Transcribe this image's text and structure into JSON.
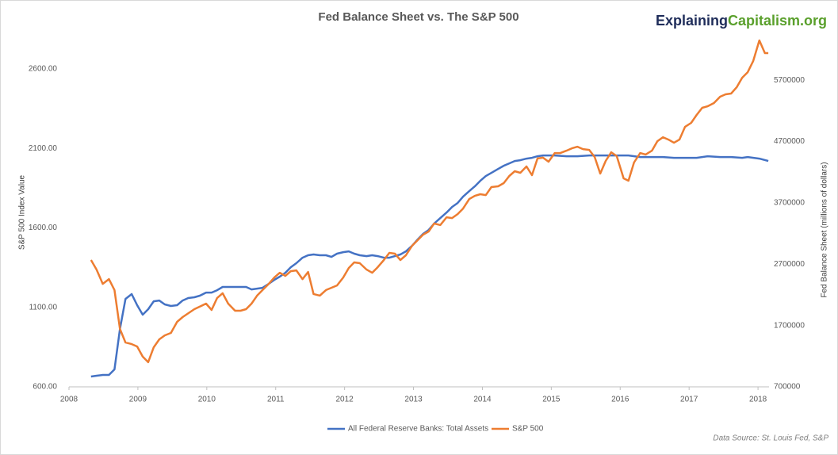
{
  "chart_data": {
    "type": "line",
    "title": "Fed Balance Sheet vs. The S&P 500",
    "brand": {
      "first": "Explaining",
      "second": "Capitalism.org"
    },
    "source": "Data Source: St. Louis Fed, S&P",
    "y_label": "S&P 500 Index Value",
    "y2_label": "Fed Balance Sheet (millions of dollars)",
    "xlim": [
      2008,
      2018.16
    ],
    "xticks": [
      2008,
      2009,
      2010,
      2011,
      2012,
      2013,
      2014,
      2015,
      2016,
      2017,
      2018
    ],
    "ylim": [
      600,
      2800
    ],
    "yticks": [
      {
        "value": 600,
        "label": "600.00"
      },
      {
        "value": 1100,
        "label": "1100.00"
      },
      {
        "value": 1600,
        "label": "1600.00"
      },
      {
        "value": 2100,
        "label": "2100.00"
      },
      {
        "value": 2600,
        "label": "2600.00"
      }
    ],
    "y2lim": [
      700000,
      6400000
    ],
    "y2ticks": [
      700000,
      1700000,
      2700000,
      3700000,
      4700000,
      5700000
    ],
    "legend": "bottom",
    "series": [
      {
        "name": "All Federal Reserve Banks: Total Assets",
        "color": "#4472c4",
        "axis": "y2",
        "x": [
          2008.32,
          2008.4,
          2008.49,
          2008.58,
          2008.66,
          2008.74,
          2008.82,
          2008.91,
          2008.99,
          2009.07,
          2009.15,
          2009.23,
          2009.31,
          2009.39,
          2009.48,
          2009.57,
          2009.65,
          2009.73,
          2009.82,
          2009.9,
          2009.99,
          2010.07,
          2010.15,
          2010.23,
          2010.41,
          2010.57,
          2010.65,
          2010.81,
          2010.9,
          2010.98,
          2011.06,
          2011.14,
          2011.22,
          2011.3,
          2011.39,
          2011.47,
          2011.55,
          2011.64,
          2011.73,
          2011.81,
          2011.89,
          2011.98,
          2012.06,
          2012.14,
          2012.22,
          2012.32,
          2012.4,
          2012.48,
          2012.57,
          2012.65,
          2012.73,
          2012.81,
          2012.89,
          2012.98,
          2013.06,
          2013.14,
          2013.22,
          2013.3,
          2013.39,
          2013.48,
          2013.56,
          2013.64,
          2013.72,
          2013.81,
          2013.89,
          2013.97,
          2014.05,
          2014.13,
          2014.23,
          2014.31,
          2014.39,
          2014.47,
          2014.55,
          2014.64,
          2014.72,
          2014.8,
          2014.88,
          2015.05,
          2015.22,
          2015.38,
          2015.55,
          2015.71,
          2015.87,
          2016.12,
          2016.29,
          2016.46,
          2016.62,
          2016.78,
          2016.94,
          2017.11,
          2017.27,
          2017.45,
          2017.61,
          2017.77,
          2017.85,
          2018.02,
          2018.15
        ],
        "values": [
          868000,
          881000,
          894000,
          894000,
          984000,
          1643000,
          2134000,
          2212000,
          2031000,
          1876000,
          1966000,
          2095000,
          2108000,
          2044000,
          2018000,
          2031000,
          2108000,
          2147000,
          2160000,
          2186000,
          2237000,
          2237000,
          2276000,
          2328000,
          2328000,
          2328000,
          2289000,
          2315000,
          2380000,
          2444000,
          2496000,
          2560000,
          2651000,
          2716000,
          2806000,
          2845000,
          2858000,
          2845000,
          2845000,
          2819000,
          2871000,
          2896000,
          2909000,
          2871000,
          2845000,
          2832000,
          2845000,
          2832000,
          2806000,
          2806000,
          2832000,
          2858000,
          2909000,
          3000000,
          3103000,
          3194000,
          3258000,
          3362000,
          3452000,
          3542000,
          3633000,
          3697000,
          3801000,
          3891000,
          3969000,
          4059000,
          4137000,
          4188000,
          4253000,
          4305000,
          4343000,
          4382000,
          4395000,
          4421000,
          4434000,
          4460000,
          4473000,
          4473000,
          4460000,
          4460000,
          4473000,
          4473000,
          4473000,
          4473000,
          4447000,
          4447000,
          4447000,
          4434000,
          4434000,
          4434000,
          4460000,
          4447000,
          4447000,
          4434000,
          4447000,
          4421000,
          4382000
        ]
      },
      {
        "name": "S&P 500",
        "color": "#ed7d31",
        "x": [
          2008.32,
          2008.4,
          2008.49,
          2008.58,
          2008.66,
          2008.74,
          2008.82,
          2008.91,
          2008.99,
          2009.07,
          2009.15,
          2009.23,
          2009.31,
          2009.39,
          2009.48,
          2009.57,
          2009.65,
          2009.82,
          2009.99,
          2010.07,
          2010.15,
          2010.23,
          2010.31,
          2010.41,
          2010.49,
          2010.57,
          2010.65,
          2010.73,
          2010.81,
          2010.9,
          2010.98,
          2011.06,
          2011.14,
          2011.22,
          2011.3,
          2011.39,
          2011.47,
          2011.55,
          2011.64,
          2011.73,
          2011.89,
          2011.98,
          2012.06,
          2012.14,
          2012.22,
          2012.32,
          2012.4,
          2012.48,
          2012.57,
          2012.65,
          2012.73,
          2012.81,
          2012.89,
          2012.98,
          2013.06,
          2013.14,
          2013.22,
          2013.3,
          2013.39,
          2013.48,
          2013.56,
          2013.64,
          2013.72,
          2013.81,
          2013.89,
          2013.97,
          2014.05,
          2014.13,
          2014.23,
          2014.31,
          2014.39,
          2014.47,
          2014.55,
          2014.64,
          2014.72,
          2014.8,
          2014.88,
          2014.96,
          2015.05,
          2015.13,
          2015.22,
          2015.3,
          2015.38,
          2015.46,
          2015.55,
          2015.63,
          2015.71,
          2015.79,
          2015.87,
          2015.95,
          2016.05,
          2016.12,
          2016.2,
          2016.29,
          2016.37,
          2016.46,
          2016.54,
          2016.62,
          2016.7,
          2016.78,
          2016.86,
          2016.94,
          2017.03,
          2017.11,
          2017.19,
          2017.27,
          2017.36,
          2017.45,
          2017.53,
          2017.61,
          2017.69,
          2017.77,
          2017.85,
          2017.93,
          2018.02,
          2018.1,
          2018.15
        ],
        "values": [
          1398,
          1338,
          1248,
          1278,
          1209,
          964,
          879,
          869,
          854,
          790,
          755,
          849,
          899,
          924,
          939,
          1009,
          1039,
          1089,
          1124,
          1084,
          1159,
          1189,
          1124,
          1079,
          1079,
          1089,
          1124,
          1174,
          1209,
          1248,
          1288,
          1318,
          1298,
          1328,
          1333,
          1278,
          1323,
          1184,
          1174,
          1209,
          1238,
          1288,
          1348,
          1383,
          1378,
          1338,
          1318,
          1353,
          1398,
          1443,
          1438,
          1398,
          1428,
          1488,
          1523,
          1558,
          1578,
          1628,
          1618,
          1667,
          1662,
          1687,
          1722,
          1782,
          1802,
          1812,
          1807,
          1857,
          1862,
          1882,
          1927,
          1957,
          1947,
          1987,
          1932,
          2037,
          2042,
          2017,
          2071,
          2071,
          2086,
          2101,
          2111,
          2096,
          2091,
          2046,
          1942,
          2022,
          2076,
          2052,
          1912,
          1897,
          2012,
          2071,
          2062,
          2086,
          2146,
          2171,
          2156,
          2136,
          2156,
          2236,
          2261,
          2311,
          2356,
          2366,
          2386,
          2426,
          2441,
          2446,
          2485,
          2545,
          2580,
          2650,
          2780,
          2700,
          2700
        ]
      }
    ]
  }
}
